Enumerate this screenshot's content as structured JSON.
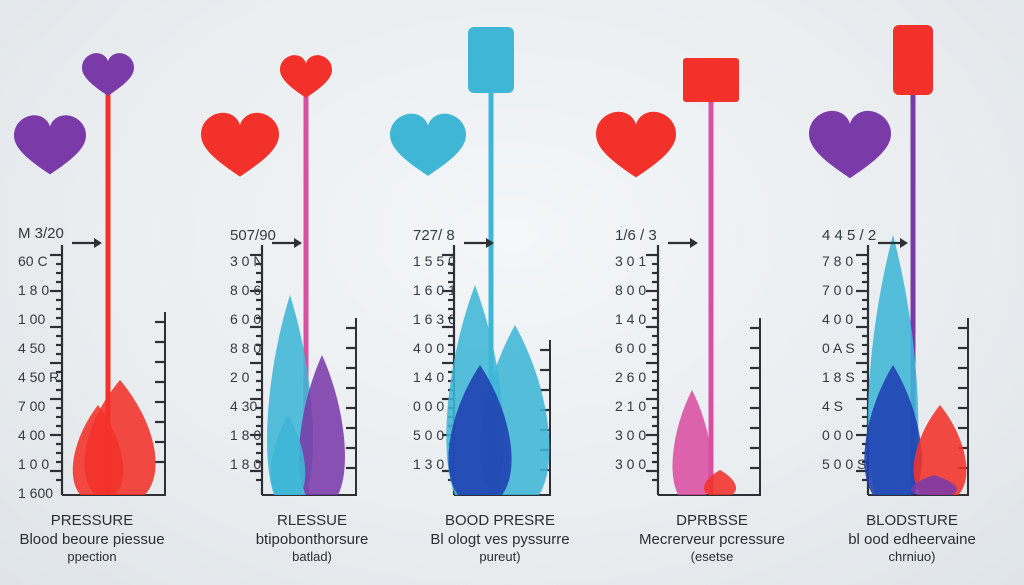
{
  "colors": {
    "purple": "#7a3aa8",
    "red": "#f2312a",
    "cyan": "#3fb6d6",
    "pink": "#d94fa1",
    "blue": "#1f3fb0",
    "ink": "#2d3136"
  },
  "gauges": [
    {
      "heart_color": "purple",
      "top_marker": "heart-purple",
      "stem_color": "red",
      "header_label": "M 3/20",
      "scale_labels": [
        "60 C",
        "1 8 0",
        "1 00",
        "4 50",
        "4 50 R",
        "7 00",
        "4 00",
        "1 0 0",
        "1 600"
      ],
      "caption_title": "PRESSURE",
      "caption_lines": [
        "Blood beoure piessue",
        "ppection"
      ]
    },
    {
      "heart_color": "red",
      "top_marker": "heart-red",
      "stem_color": "pink",
      "header_label": "507/90",
      "scale_labels": [
        "3 0 N",
        "8 0 6",
        "6 0 0",
        "8 8 0",
        "2 0",
        "4 30",
        "1 8 0",
        "1 8 0"
      ],
      "caption_title": "RLESSUE",
      "caption_lines": [
        "btipobonthorsure",
        "batlad)"
      ]
    },
    {
      "heart_color": "cyan",
      "top_marker": "paddle-cyan",
      "stem_color": "cyan",
      "header_label": "727/ 8",
      "scale_labels": [
        "1 5 5 0",
        "1 6 0 1",
        "1 6 3 6",
        "4 0 0",
        "1 4 0",
        "0 0 0",
        "5 0 0",
        "1 3 0 8"
      ],
      "caption_title": "BOOD PRESRE",
      "caption_lines": [
        "Bl ologt ves pyssurre",
        "pureut)"
      ]
    },
    {
      "heart_color": "red",
      "top_marker": "square-red",
      "stem_color": "pink",
      "header_label": "1/6 / 3",
      "scale_labels": [
        "3 0 1",
        "8 0 0",
        "1 4 0",
        "6 0 0",
        "2 6 0",
        "2 1 0",
        "3 0 0",
        "3 0 0"
      ],
      "caption_title": "DPRBSSE",
      "caption_lines": [
        "Mecrerveur pcressure",
        "(esetse"
      ]
    },
    {
      "heart_color": "purple",
      "top_marker": "paddle-red",
      "stem_color": "purple",
      "header_label": "4 4 5 / 2",
      "scale_labels": [
        "7 8 0",
        "7 0 0",
        "4 0 0",
        "0 A S",
        "1 8 S",
        "4 S",
        "0 0 0",
        "5 0 0 S"
      ],
      "caption_title": "BLODSTURE",
      "caption_lines": [
        "bl ood edheervaine",
        "chrniuo)"
      ]
    }
  ]
}
